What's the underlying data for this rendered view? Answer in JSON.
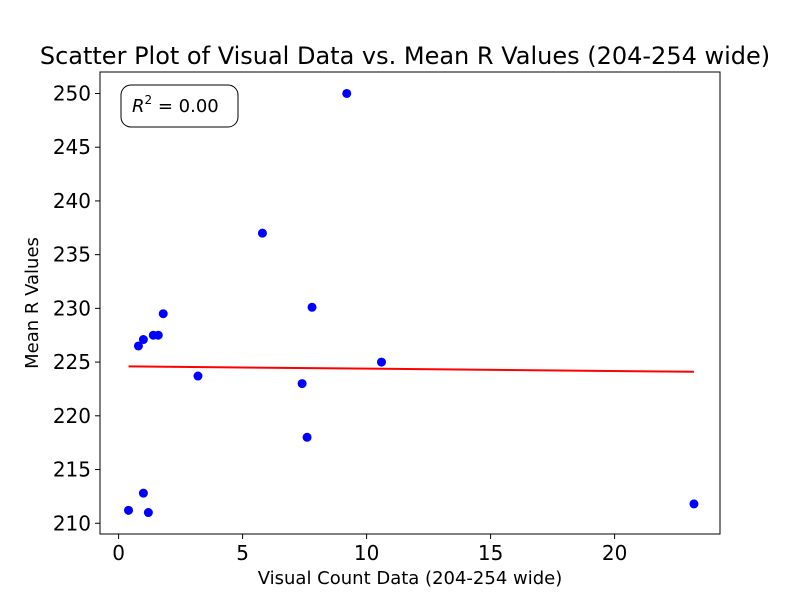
{
  "chart_data": {
    "type": "scatter",
    "title": "Scatter Plot of Visual Data vs. Mean R Values (204-254 wide)",
    "xlabel": "Visual Count Data (204-254 wide)",
    "ylabel": "Mean R Values",
    "xlim": [
      -0.75,
      24.25
    ],
    "ylim": [
      209.0,
      252.0
    ],
    "xticks": [
      0,
      5,
      10,
      15,
      20
    ],
    "yticks": [
      210,
      215,
      220,
      225,
      230,
      235,
      240,
      245,
      250
    ],
    "grid": false,
    "colors": {
      "points": "#0000ff",
      "fit_line": "#ff0000",
      "axes": "#000000",
      "background": "#ffffff"
    },
    "annotation": {
      "prefix": "R",
      "superscript": "2",
      "suffix": " = 0.00",
      "placement": "top-left"
    },
    "series": [
      {
        "points": [
          {
            "x": 0.4,
            "y": 211.2
          },
          {
            "x": 0.8,
            "y": 226.5
          },
          {
            "x": 1.0,
            "y": 227.1
          },
          {
            "x": 1.0,
            "y": 212.8
          },
          {
            "x": 1.2,
            "y": 211.0
          },
          {
            "x": 1.4,
            "y": 227.5
          },
          {
            "x": 1.6,
            "y": 227.5
          },
          {
            "x": 1.8,
            "y": 229.5
          },
          {
            "x": 3.2,
            "y": 223.7
          },
          {
            "x": 5.8,
            "y": 237.0
          },
          {
            "x": 7.4,
            "y": 223.0
          },
          {
            "x": 7.6,
            "y": 218.0
          },
          {
            "x": 7.8,
            "y": 230.1
          },
          {
            "x": 9.2,
            "y": 250.0
          },
          {
            "x": 10.6,
            "y": 225.0
          },
          {
            "x": 23.2,
            "y": 211.8
          }
        ]
      }
    ],
    "fit_line": {
      "x": [
        0.4,
        23.2
      ],
      "y": [
        224.6,
        224.1
      ]
    }
  }
}
